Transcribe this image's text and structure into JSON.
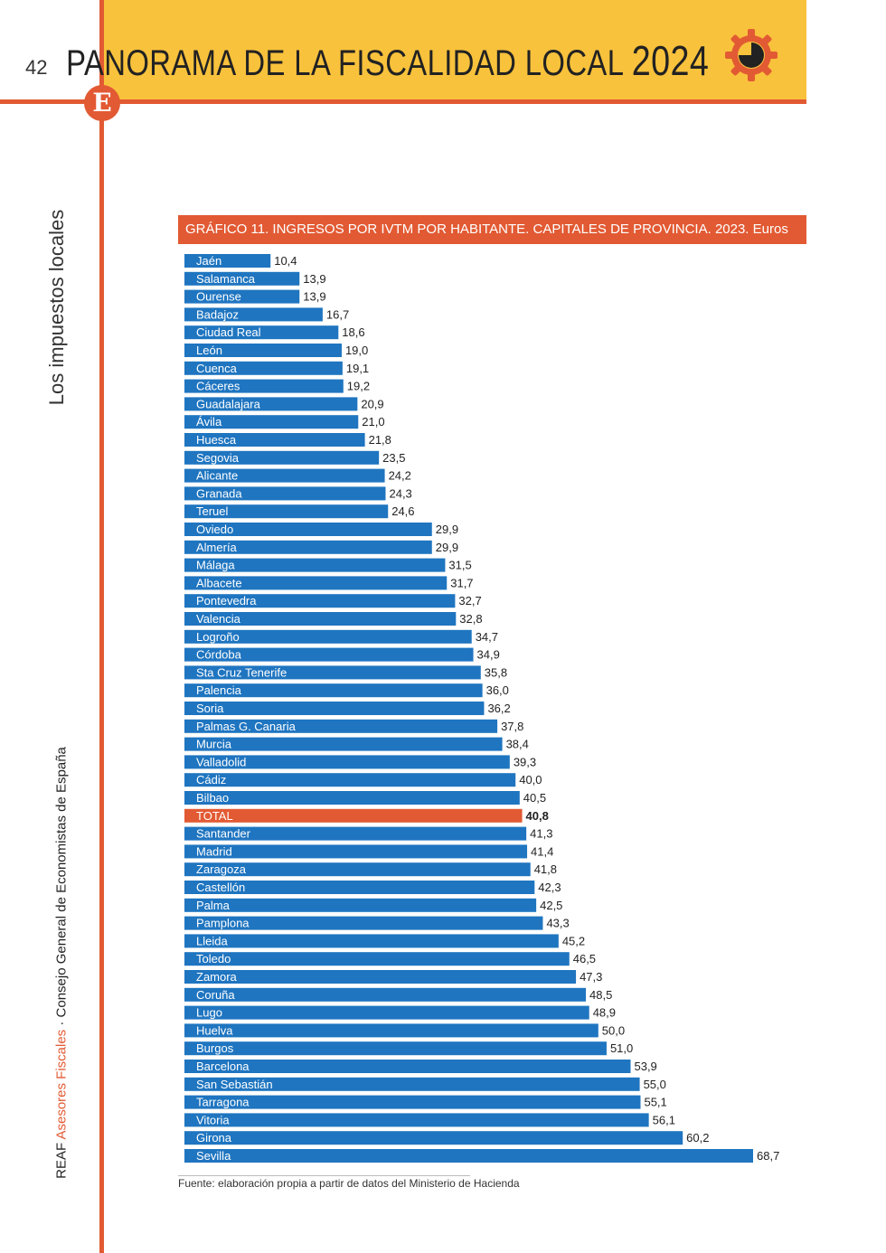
{
  "header": {
    "page_number": "42",
    "title": "PANORAMA DE LA FISCALIDAD LOCAL",
    "year": "2024",
    "logo_letter": "E"
  },
  "sidebar": {
    "section": "Los impuestos locales",
    "publisher_prefix": "REAF",
    "publisher_accent": "Asesores Fiscales",
    "publisher_suffix": " · Consejo General de Economistas de España"
  },
  "colors": {
    "accent": "#e25a33",
    "header_yellow": "#f9c23c",
    "bar_blue": "#1f75c0",
    "bar_total": "#e25a33"
  },
  "chart_data": {
    "type": "bar",
    "orientation": "horizontal",
    "title": "GRÁFICO 11. INGRESOS POR IVTM POR HABITANTE. CAPITALES DE PROVINCIA. 2023. Euros",
    "categories": [
      "Jaén",
      "Salamanca",
      "Ourense",
      "Badajoz",
      "Ciudad Real",
      "León",
      "Cuenca",
      "Cáceres",
      "Guadalajara",
      "Ávila",
      "Huesca",
      "Segovia",
      "Alicante",
      "Granada",
      "Teruel",
      "Oviedo",
      "Almería",
      "Málaga",
      "Albacete",
      "Pontevedra",
      "Valencia",
      "Logroño",
      "Córdoba",
      "Sta Cruz Tenerife",
      "Palencia",
      "Soria",
      "Palmas  G. Canaria",
      "Murcia",
      "Valladolid",
      "Cádiz",
      "Bilbao",
      "TOTAL",
      "Santander",
      "Madrid",
      "Zaragoza",
      "Castellón",
      "Palma",
      "Pamplona",
      "Lleida",
      "Toledo",
      "Zamora",
      "Coruña",
      "Lugo",
      "Huelva",
      "Burgos",
      "Barcelona",
      "San Sebastián",
      "Tarragona",
      "Vitoria",
      "Girona",
      "Sevilla"
    ],
    "values": [
      10.4,
      13.9,
      13.9,
      16.7,
      18.6,
      19.0,
      19.1,
      19.2,
      20.9,
      21.0,
      21.8,
      23.5,
      24.2,
      24.3,
      24.6,
      29.9,
      29.9,
      31.5,
      31.7,
      32.7,
      32.8,
      34.7,
      34.9,
      35.8,
      36.0,
      36.2,
      37.8,
      38.4,
      39.3,
      40.0,
      40.5,
      40.8,
      41.3,
      41.4,
      41.8,
      42.3,
      42.5,
      43.3,
      45.2,
      46.5,
      47.3,
      48.5,
      48.9,
      50.0,
      51.0,
      53.9,
      55.0,
      55.1,
      56.1,
      60.2,
      68.7
    ],
    "value_labels": [
      "10,4",
      "13,9",
      "13,9",
      "16,7",
      "18,6",
      "19,0",
      "19,1",
      "19,2",
      "20,9",
      "21,0",
      "21,8",
      "23,5",
      "24,2",
      "24,3",
      "24,6",
      "29,9",
      "29,9",
      "31,5",
      "31,7",
      "32,7",
      "32,8",
      "34,7",
      "34,9",
      "35,8",
      "36,0",
      "36,2",
      "37,8",
      "38,4",
      "39,3",
      "40,0",
      "40,5",
      "40,8",
      "41,3",
      "41,4",
      "41,8",
      "42,3",
      "42,5",
      "43,3",
      "45,2",
      "46,5",
      "47,3",
      "48,5",
      "48,9",
      "50,0",
      "51,0",
      "53,9",
      "55,0",
      "55,1",
      "56,1",
      "60,2",
      "68,7"
    ],
    "highlight": "TOTAL",
    "xlim": [
      0,
      68.7
    ],
    "grid": false,
    "legend": "none",
    "source": "Fuente: elaboración propia a partir de datos del Ministerio de Hacienda"
  }
}
